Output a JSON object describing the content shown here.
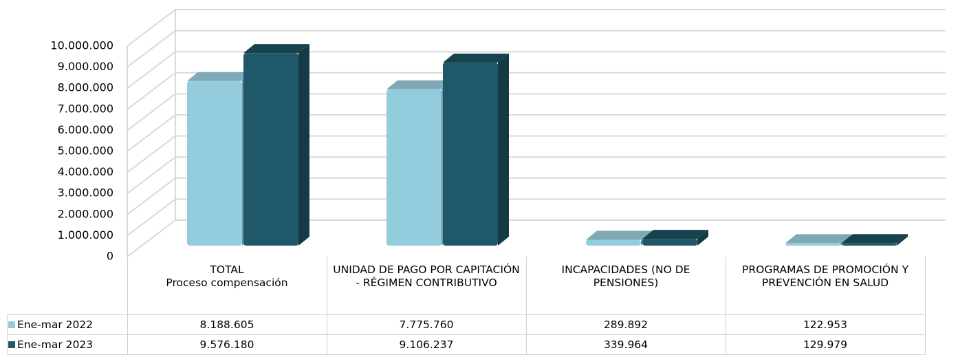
{
  "chart_data": {
    "type": "bar3d",
    "categories": [
      "TOTAL\nProceso compensación",
      "UNIDAD DE PAGO POR CAPITACIÓN - RÉGIMEN CONTRIBUTIVO",
      "INCAPACIDADES (NO DE PENSIONES)",
      "PROGRAMAS DE PROMOCIÓN Y PREVENCIÓN EN SALUD"
    ],
    "series": [
      {
        "name": "Ene-mar 2022",
        "color": "#93cddd",
        "top_color": "#7fa9b6",
        "side_color": "#6f98a5",
        "values": [
          8188605,
          7775760,
          289892,
          122953
        ],
        "value_labels": [
          "8.188.605",
          "7.775.760",
          "289.892",
          "122.953"
        ]
      },
      {
        "name": "Ene-mar 2023",
        "color": "#1f5868",
        "top_color": "#17434f",
        "side_color": "#163a45",
        "values": [
          9576180,
          9106237,
          339964,
          129979
        ],
        "value_labels": [
          "9.576.180",
          "9.106.237",
          "339.964",
          "129.979"
        ]
      }
    ],
    "ylim": [
      0,
      10000000
    ],
    "yticks": [
      0,
      {
        "value": 1000000,
        "label": "1.000.000"
      },
      {
        "value": 2000000,
        "label": "2.000.000"
      },
      {
        "value": 3000000,
        "label": "3.000.000"
      },
      {
        "value": 4000000,
        "label": "4.000.000"
      },
      {
        "value": 5000000,
        "label": "5.000.000"
      },
      {
        "value": 6000000,
        "label": "6.000.000"
      },
      {
        "value": 7000000,
        "label": "7.000.000"
      },
      {
        "value": 8000000,
        "label": "8.000.000"
      },
      {
        "value": 9000000,
        "label": "9.000.000"
      },
      {
        "value": 10000000,
        "label": "10.000.000"
      }
    ],
    "grid": true
  }
}
